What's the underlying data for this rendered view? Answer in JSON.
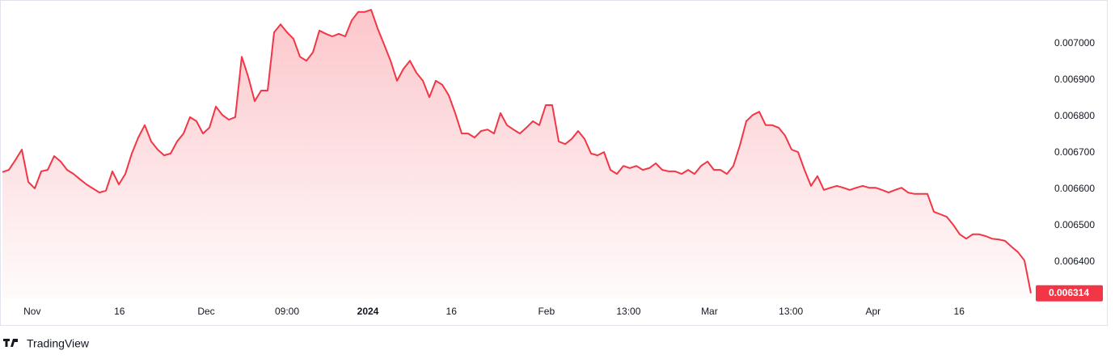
{
  "chart_data": {
    "type": "area",
    "watermark": "TradingView",
    "color": "#f23645",
    "values": [
      0.006647,
      0.006653,
      0.00668,
      0.006709,
      0.00662,
      0.006602,
      0.006649,
      0.006653,
      0.006691,
      0.006676,
      0.006653,
      0.006642,
      0.006627,
      0.006613,
      0.006602,
      0.006591,
      0.006596,
      0.006649,
      0.006613,
      0.006642,
      0.006698,
      0.006742,
      0.006776,
      0.006731,
      0.006709,
      0.006693,
      0.006698,
      0.006731,
      0.006753,
      0.006798,
      0.006787,
      0.006753,
      0.006769,
      0.006827,
      0.006804,
      0.006791,
      0.006798,
      0.006964,
      0.006909,
      0.006842,
      0.006871,
      0.006871,
      0.007031,
      0.007053,
      0.007031,
      0.007013,
      0.006964,
      0.006953,
      0.006976,
      0.007036,
      0.007027,
      0.00702,
      0.007027,
      0.00702,
      0.007064,
      0.007087,
      0.007087,
      0.007093,
      0.007042,
      0.006998,
      0.006953,
      0.006898,
      0.006931,
      0.006953,
      0.00692,
      0.006898,
      0.006853,
      0.006898,
      0.006887,
      0.006858,
      0.006809,
      0.006753,
      0.006753,
      0.006742,
      0.00676,
      0.006764,
      0.006753,
      0.006809,
      0.006776,
      0.006764,
      0.006753,
      0.006769,
      0.006787,
      0.006776,
      0.006831,
      0.006831,
      0.006731,
      0.006724,
      0.006738,
      0.00676,
      0.006738,
      0.006698,
      0.006693,
      0.006702,
      0.006653,
      0.006642,
      0.006664,
      0.006658,
      0.006664,
      0.006653,
      0.006658,
      0.006671,
      0.006653,
      0.006649,
      0.006649,
      0.006642,
      0.006653,
      0.006642,
      0.006664,
      0.006676,
      0.006653,
      0.006653,
      0.006642,
      0.006664,
      0.00672,
      0.006787,
      0.006804,
      0.006813,
      0.006776,
      0.006776,
      0.006769,
      0.006747,
      0.006709,
      0.006702,
      0.006653,
      0.006609,
      0.006636,
      0.006598,
      0.006604,
      0.006609,
      0.006604,
      0.006598,
      0.006604,
      0.006609,
      0.006604,
      0.006604,
      0.006598,
      0.006591,
      0.006598,
      0.006604,
      0.006591,
      0.006587,
      0.006587,
      0.006587,
      0.006538,
      0.006531,
      0.006524,
      0.006502,
      0.006476,
      0.006464,
      0.006476,
      0.006476,
      0.006471,
      0.006464,
      0.006462,
      0.006458,
      0.006442,
      0.006427,
      0.006404,
      0.006314
    ],
    "xlim": [
      0,
      159
    ],
    "xticks": [
      {
        "value": 4.6,
        "label": "Nov"
      },
      {
        "value": 18.1,
        "label": "16"
      },
      {
        "value": 31.5,
        "label": "Dec"
      },
      {
        "value": 44,
        "label": "09:00"
      },
      {
        "value": 56.5,
        "label": "2024",
        "bold": true
      },
      {
        "value": 69.4,
        "label": "16"
      },
      {
        "value": 84.1,
        "label": "Feb"
      },
      {
        "value": 96.8,
        "label": "13:00"
      },
      {
        "value": 109.3,
        "label": "Mar"
      },
      {
        "value": 121.9,
        "label": "13:00"
      },
      {
        "value": 134.6,
        "label": "Apr"
      },
      {
        "value": 147.9,
        "label": "16"
      }
    ],
    "ylim": [
      0.0063,
      0.00712
    ],
    "yticks": [
      {
        "value": 0.0064,
        "label": "0.006400"
      },
      {
        "value": 0.0065,
        "label": "0.006500"
      },
      {
        "value": 0.0066,
        "label": "0.006600"
      },
      {
        "value": 0.0067,
        "label": "0.006700"
      },
      {
        "value": 0.0068,
        "label": "0.006800"
      },
      {
        "value": 0.0069,
        "label": "0.006900"
      },
      {
        "value": 0.007,
        "label": "0.007000"
      }
    ]
  }
}
